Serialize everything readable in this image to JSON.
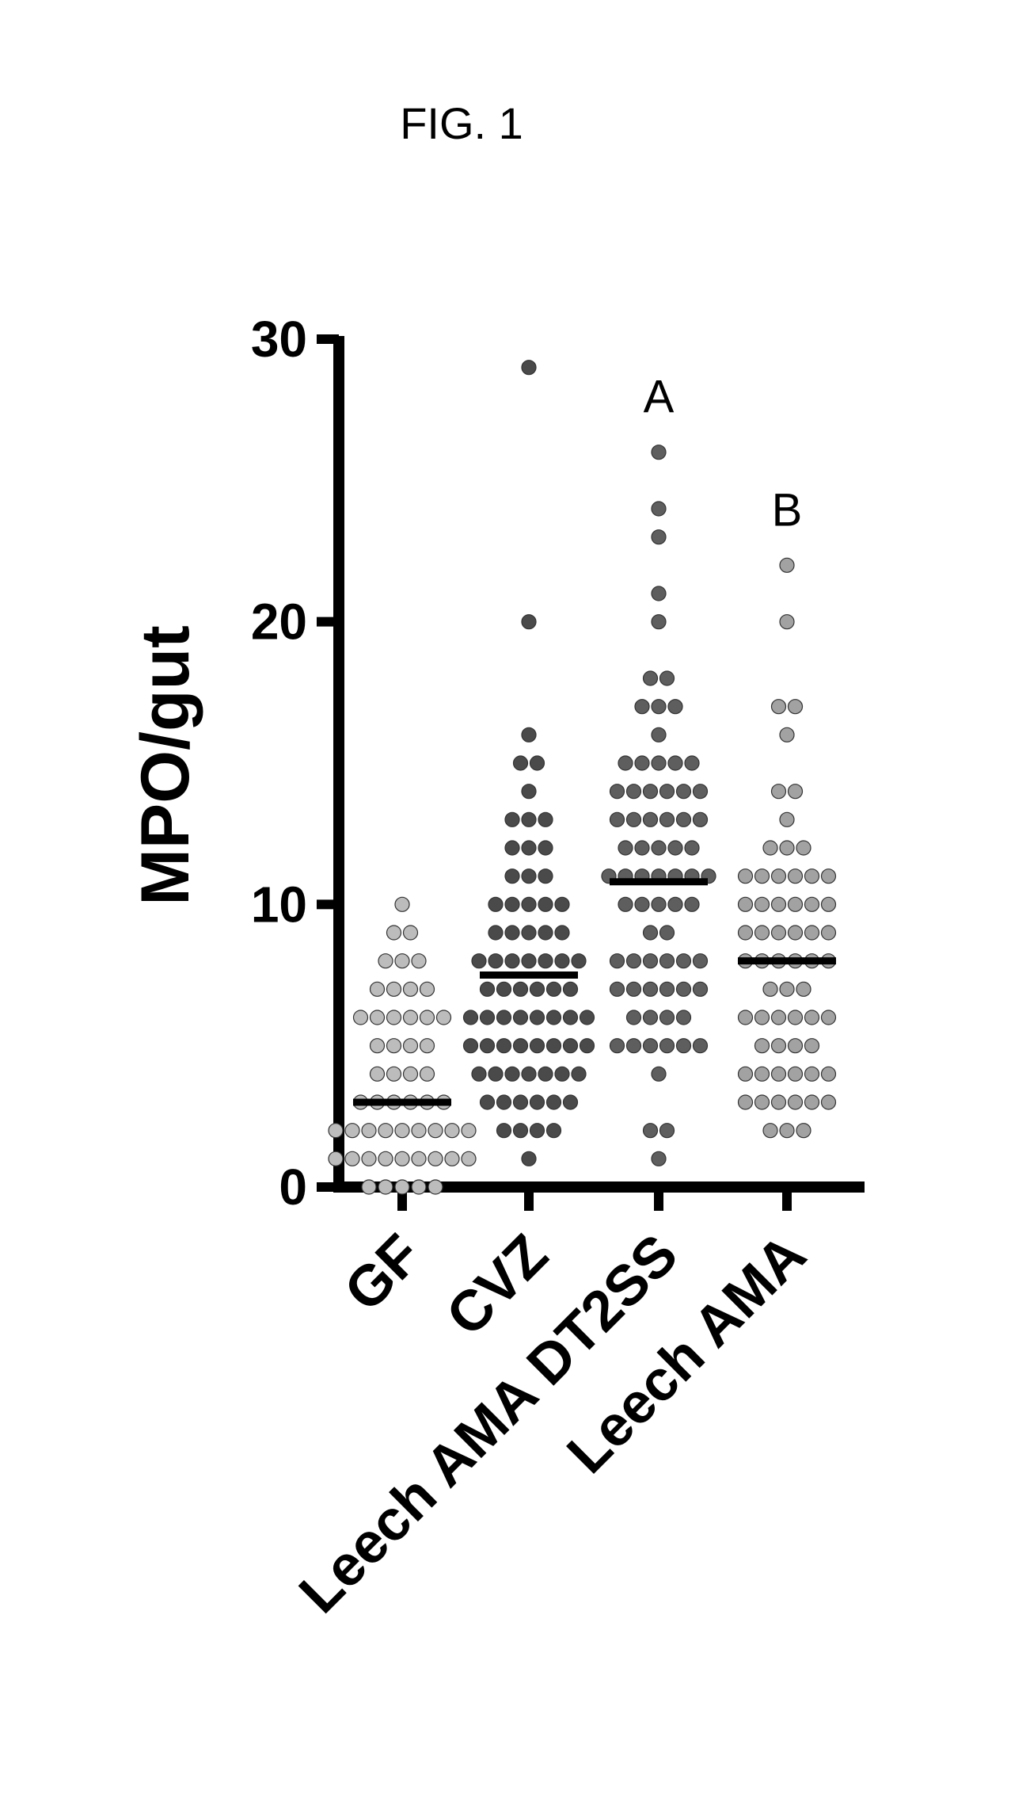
{
  "figure_title": "FIG. 1",
  "chart_data": {
    "type": "scatter",
    "subtype": "dot-plot",
    "xlabel": "",
    "ylabel": "MPO/gut",
    "ylim": [
      0,
      30
    ],
    "yticks": [
      "0",
      "10",
      "20",
      "30"
    ],
    "categories": [
      "GF",
      "CVZ",
      "Leech AMA DT2SS",
      "Leech AMA"
    ],
    "grid": false,
    "legend": "none",
    "series": [
      {
        "name": "GF",
        "color": "#bcbcbc",
        "median": 3,
        "values": [
          0,
          0,
          0,
          0,
          0,
          1,
          1,
          1,
          1,
          1,
          1,
          1,
          1,
          1,
          2,
          2,
          2,
          2,
          2,
          2,
          2,
          2,
          2,
          3,
          3,
          3,
          3,
          3,
          3,
          4,
          4,
          4,
          4,
          5,
          5,
          5,
          5,
          6,
          6,
          6,
          6,
          6,
          6,
          7,
          7,
          7,
          7,
          8,
          8,
          8,
          9,
          9,
          10
        ]
      },
      {
        "name": "CVZ",
        "color": "#4a4a4a",
        "median": 7.5,
        "values": [
          1,
          2,
          2,
          2,
          2,
          3,
          3,
          3,
          3,
          3,
          3,
          4,
          4,
          4,
          4,
          4,
          4,
          4,
          5,
          5,
          5,
          5,
          5,
          5,
          5,
          5,
          6,
          6,
          6,
          6,
          6,
          6,
          6,
          6,
          7,
          7,
          7,
          7,
          7,
          7,
          8,
          8,
          8,
          8,
          8,
          8,
          8,
          9,
          9,
          9,
          9,
          9,
          10,
          10,
          10,
          10,
          10,
          11,
          11,
          11,
          12,
          12,
          12,
          13,
          13,
          13,
          14,
          15,
          15,
          16,
          20,
          29
        ]
      },
      {
        "name": "Leech AMA DT2SS",
        "color": "#5e5e5e",
        "median": 10.8,
        "annotation": "A",
        "values": [
          1,
          2,
          2,
          4,
          5,
          5,
          5,
          5,
          5,
          5,
          6,
          6,
          6,
          6,
          7,
          7,
          7,
          7,
          7,
          7,
          8,
          8,
          8,
          8,
          8,
          8,
          9,
          9,
          10,
          10,
          10,
          10,
          10,
          11,
          11,
          11,
          11,
          11,
          11,
          11,
          12,
          12,
          12,
          12,
          12,
          13,
          13,
          13,
          13,
          13,
          13,
          14,
          14,
          14,
          14,
          14,
          14,
          15,
          15,
          15,
          15,
          15,
          16,
          17,
          17,
          17,
          18,
          18,
          20,
          21,
          23,
          24,
          26
        ]
      },
      {
        "name": "Leech AMA",
        "color": "#a2a2a2",
        "median": 8,
        "annotation": "B",
        "values": [
          2,
          2,
          2,
          3,
          3,
          3,
          3,
          3,
          3,
          4,
          4,
          4,
          4,
          4,
          4,
          5,
          5,
          5,
          5,
          6,
          6,
          6,
          6,
          6,
          6,
          7,
          7,
          7,
          8,
          8,
          8,
          8,
          8,
          8,
          9,
          9,
          9,
          9,
          9,
          9,
          10,
          10,
          10,
          10,
          10,
          10,
          11,
          11,
          11,
          11,
          11,
          11,
          12,
          12,
          12,
          13,
          14,
          14,
          16,
          17,
          17,
          20,
          22
        ]
      }
    ]
  }
}
